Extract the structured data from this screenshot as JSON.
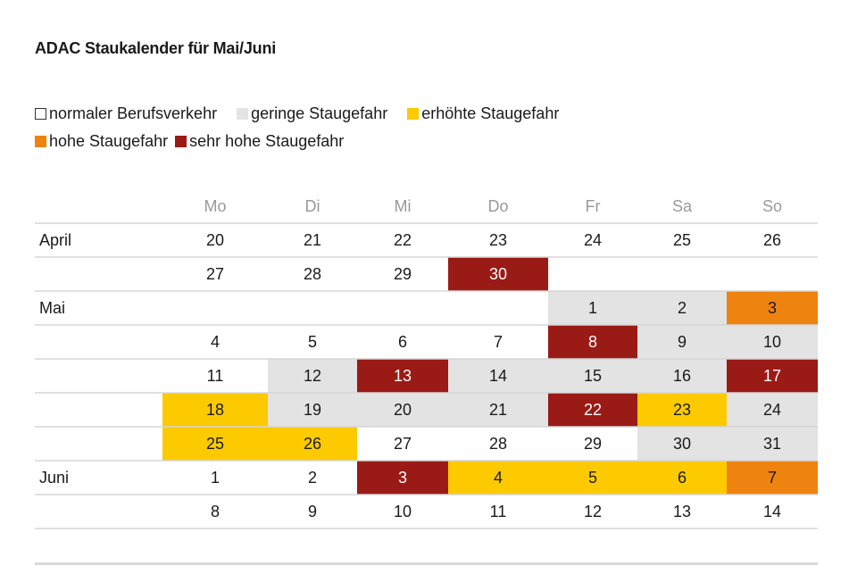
{
  "title": "ADAC Staukalender für Mai/Juni",
  "legend": [
    {
      "key": "normal",
      "label": "normaler Berufsverkehr",
      "color": "#ffffff"
    },
    {
      "key": "gering",
      "label": "geringe Staugefahr",
      "color": "#e3e3e3"
    },
    {
      "key": "erhoeht",
      "label": "erhöhte Staugefahr",
      "color": "#fdca00"
    },
    {
      "key": "hoch",
      "label": "hohe Staugefahr",
      "color": "#ee8310"
    },
    {
      "key": "sehrhoch",
      "label": "sehr hohe Staugefahr",
      "color": "#9a1a15"
    }
  ],
  "chart_data": {
    "type": "table",
    "title": "ADAC Staukalender für Mai/Juni",
    "columns": [
      "Mo",
      "Di",
      "Mi",
      "Do",
      "Fr",
      "Sa",
      "So"
    ],
    "rows": [
      {
        "month": "April",
        "cells": [
          [
            "20",
            "normal"
          ],
          [
            "21",
            "normal"
          ],
          [
            "22",
            "normal"
          ],
          [
            "23",
            "normal"
          ],
          [
            "24",
            "normal"
          ],
          [
            "25",
            "normal"
          ],
          [
            "26",
            "normal"
          ]
        ]
      },
      {
        "month": "",
        "cells": [
          [
            "27",
            "normal"
          ],
          [
            "28",
            "normal"
          ],
          [
            "29",
            "normal"
          ],
          [
            "30",
            "sehrhoch"
          ],
          [
            "",
            ""
          ],
          [
            "",
            ""
          ],
          [
            "",
            ""
          ]
        ]
      },
      {
        "month": "Mai",
        "cells": [
          [
            "",
            ""
          ],
          [
            "",
            ""
          ],
          [
            "",
            ""
          ],
          [
            "",
            ""
          ],
          [
            "1",
            "gering"
          ],
          [
            "2",
            "gering"
          ],
          [
            "3",
            "hoch"
          ]
        ]
      },
      {
        "month": "",
        "cells": [
          [
            "4",
            "normal"
          ],
          [
            "5",
            "normal"
          ],
          [
            "6",
            "normal"
          ],
          [
            "7",
            "normal"
          ],
          [
            "8",
            "sehrhoch"
          ],
          [
            "9",
            "gering"
          ],
          [
            "10",
            "gering"
          ]
        ]
      },
      {
        "month": "",
        "cells": [
          [
            "11",
            "normal"
          ],
          [
            "12",
            "gering"
          ],
          [
            "13",
            "sehrhoch"
          ],
          [
            "14",
            "gering"
          ],
          [
            "15",
            "gering"
          ],
          [
            "16",
            "gering"
          ],
          [
            "17",
            "sehrhoch"
          ]
        ]
      },
      {
        "month": "",
        "cells": [
          [
            "18",
            "erhoeht"
          ],
          [
            "19",
            "gering"
          ],
          [
            "20",
            "gering"
          ],
          [
            "21",
            "gering"
          ],
          [
            "22",
            "sehrhoch"
          ],
          [
            "23",
            "erhoeht"
          ],
          [
            "24",
            "gering"
          ]
        ]
      },
      {
        "month": "",
        "cells": [
          [
            "25",
            "erhoeht"
          ],
          [
            "26",
            "erhoeht"
          ],
          [
            "27",
            "normal"
          ],
          [
            "28",
            "normal"
          ],
          [
            "29",
            "normal"
          ],
          [
            "30",
            "gering"
          ],
          [
            "31",
            "gering"
          ]
        ]
      },
      {
        "month": "Juni",
        "cells": [
          [
            "1",
            "normal"
          ],
          [
            "2",
            "normal"
          ],
          [
            "3",
            "sehrhoch"
          ],
          [
            "4",
            "erhoeht"
          ],
          [
            "5",
            "erhoeht"
          ],
          [
            "6",
            "erhoeht"
          ],
          [
            "7",
            "hoch"
          ]
        ]
      },
      {
        "month": "",
        "cells": [
          [
            "8",
            "normal"
          ],
          [
            "9",
            "normal"
          ],
          [
            "10",
            "normal"
          ],
          [
            "11",
            "normal"
          ],
          [
            "12",
            "normal"
          ],
          [
            "13",
            "normal"
          ],
          [
            "14",
            "normal"
          ]
        ]
      }
    ]
  }
}
